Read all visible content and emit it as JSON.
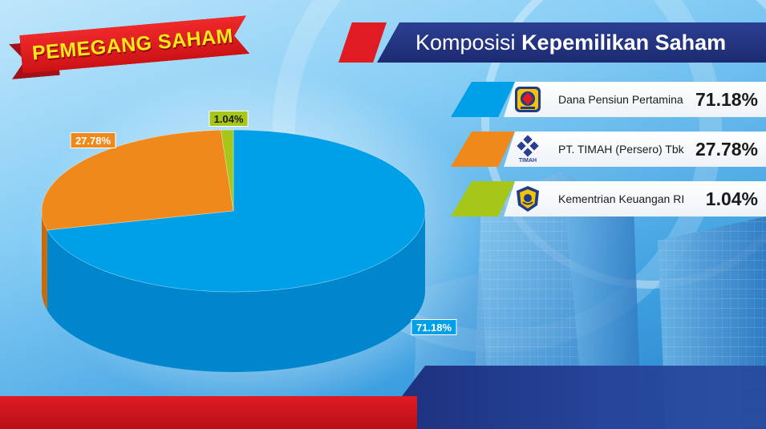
{
  "banner": {
    "label": "PEMEGANG SAHAM"
  },
  "title": {
    "regular": "Komposisi",
    "bold": "Kepemilikan Saham"
  },
  "colors": {
    "blue": "#00a0e9",
    "blue_side": "#0086cc",
    "orange": "#f0891c",
    "orange_side": "#c86a0c",
    "green": "#a6c619",
    "green_side": "#86a20d",
    "red": "#e01b24",
    "navy": "#1f2e78"
  },
  "shareholders": [
    {
      "name": "Dana Pensiun Pertamina",
      "percent": "71.18%",
      "logo": "pertamina-pension-logo-icon"
    },
    {
      "name": "PT. TIMAH (Persero) Tbk",
      "percent": "27.78%",
      "logo": "timah-logo-icon",
      "logo_text": "TIMAH"
    },
    {
      "name": "Kementrian Keuangan RI",
      "percent": "1.04%",
      "logo": "ministry-finance-logo-icon"
    }
  ],
  "chart_data": {
    "type": "pie",
    "title": "",
    "categories": [
      "Dana Pensiun Pertamina",
      "PT. TIMAH (Persero) Tbk",
      "Kementrian Keuangan RI"
    ],
    "values": [
      71.18,
      27.78,
      1.04
    ],
    "labels": [
      "71.18%",
      "27.78%",
      "1.04%"
    ],
    "colors": [
      "#00a0e9",
      "#f0891c",
      "#a6c619"
    ],
    "style": "3d"
  }
}
